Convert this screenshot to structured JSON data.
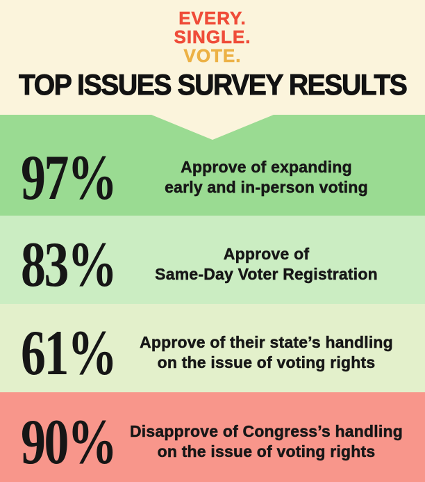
{
  "logo": {
    "lines": [
      {
        "text": "EVERY.",
        "color": "#EF4C39"
      },
      {
        "text": "SINGLE.",
        "color": "#EF4C39"
      },
      {
        "text": "VOTE.",
        "color": "#ECB145"
      }
    ]
  },
  "title": "TOP ISSUES SURVEY RESULTS",
  "colors": {
    "background_cream": "#FBF4DC",
    "text_black": "#1B1B1B",
    "logo_red": "#EF4C39",
    "logo_gold": "#ECB145",
    "band_green_dark": "#9ADB92",
    "band_green_mid": "#CBEDC2",
    "band_green_pale": "#E3F0CB",
    "band_salmon": "#F8968B"
  },
  "rows": [
    {
      "percent": "97%",
      "line1": "Approve of expanding",
      "line2": "early and in-person voting",
      "bg": "#9ADB92"
    },
    {
      "percent": "83%",
      "line1": "Approve of",
      "line2": "Same-Day Voter Registration",
      "bg": "#CBEDC2"
    },
    {
      "percent": "61%",
      "line1": "Approve of their state’s handling",
      "line2": "on the issue of voting rights",
      "bg": "#E3F0CB"
    },
    {
      "percent": "90%",
      "line1": "Disapprove of Congress’s handling",
      "line2": "on the issue of voting rights",
      "bg": "#F8968B"
    }
  ],
  "chart_data": {
    "type": "table",
    "title": "TOP ISSUES SURVEY RESULTS",
    "columns": [
      "percent",
      "statement"
    ],
    "rows": [
      {
        "percent": 97,
        "statement": "Approve of expanding early and in-person voting"
      },
      {
        "percent": 83,
        "statement": "Approve of Same-Day Voter Registration"
      },
      {
        "percent": 61,
        "statement": "Approve of their state’s handling on the issue of voting rights"
      },
      {
        "percent": 90,
        "statement": "Disapprove of Congress’s handling on the issue of voting rights"
      }
    ]
  }
}
